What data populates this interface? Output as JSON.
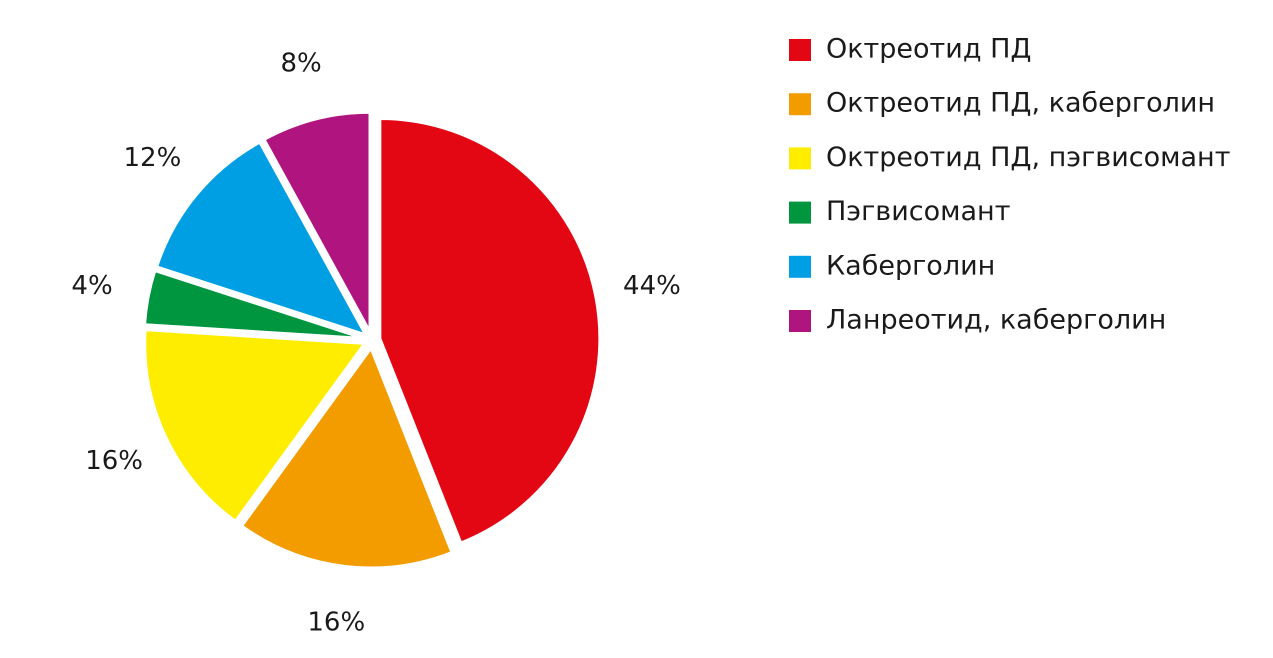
{
  "chart_data": {
    "type": "pie",
    "categories": [
      "Октреотид ПД",
      "Октреотид ПД, каберголин",
      "Октреотид ПД, пэгвисомант",
      "Пэгвисомант",
      "Каберголин",
      "Ланреотид, каберголин"
    ],
    "values": [
      44,
      16,
      16,
      4,
      12,
      8
    ],
    "value_labels": [
      "44%",
      "16%",
      "16%",
      "4%",
      "12%",
      "8%"
    ],
    "colors": [
      "#e30613",
      "#f39c00",
      "#ffed00",
      "#009640",
      "#009fe3",
      "#b0157f"
    ],
    "legend": "right"
  }
}
